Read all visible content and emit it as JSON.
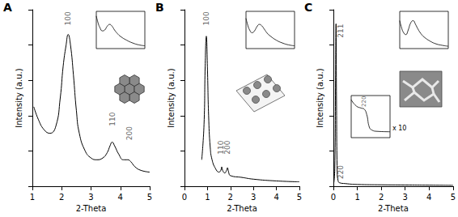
{
  "chart_data": [
    {
      "type": "line",
      "title": "A",
      "xlabel": "2-Theta",
      "ylabel": "Intensity (a.u.)",
      "color": "#000000",
      "x": [
        1.05,
        1.2,
        1.4,
        1.6,
        1.8,
        1.95,
        2.05,
        2.15,
        2.22,
        2.3,
        2.4,
        2.5,
        2.6,
        2.8,
        3.0,
        3.2,
        3.4,
        3.55,
        3.65,
        3.72,
        3.8,
        3.95,
        4.1,
        4.25,
        4.35,
        4.5,
        4.7,
        5.0
      ],
      "values": [
        45,
        38,
        32,
        30,
        34,
        50,
        68,
        80,
        86,
        80,
        63,
        43,
        30,
        20,
        16,
        15,
        16,
        19,
        23,
        25,
        23,
        18,
        15,
        15,
        14,
        11,
        9,
        8
      ],
      "xlim": [
        1,
        5
      ],
      "xticks": [
        1,
        2,
        3,
        4,
        5
      ],
      "ylim": [
        0,
        100
      ],
      "yticks": [
        0,
        20,
        40,
        60,
        80,
        100
      ],
      "tick_labels": "x",
      "annotations": [
        {
          "text": "100",
          "x": 2.22,
          "y": 95
        },
        {
          "text": "110",
          "x": 3.72,
          "y": 38
        },
        {
          "text": "200",
          "x": 4.3,
          "y": 30
        }
      ],
      "insets": [
        {
          "type": "line",
          "color": "#000000",
          "tick_labels": false,
          "xlim": [
            0,
            80
          ],
          "ylim": [
            0,
            80
          ],
          "x": [
            0,
            3,
            6,
            10,
            14,
            18,
            22,
            26,
            30,
            35,
            40,
            50,
            60,
            70,
            80
          ],
          "values": [
            70,
            55,
            45,
            38,
            40,
            48,
            52,
            48,
            40,
            32,
            26,
            18,
            12,
            8,
            6
          ]
        }
      ]
    },
    {
      "type": "line",
      "title": "B",
      "xlabel": "2-Theta",
      "ylabel": "Intensity (a.u.)",
      "color": "#000000",
      "x": [
        0.75,
        0.85,
        0.9,
        0.95,
        1.0,
        1.05,
        1.12,
        1.2,
        1.35,
        1.5,
        1.58,
        1.62,
        1.66,
        1.75,
        1.83,
        1.87,
        1.92,
        2.0,
        2.5,
        3.0,
        4.0,
        5.0
      ],
      "values": [
        15,
        35,
        68,
        85,
        66,
        40,
        22,
        15,
        10,
        8,
        9,
        11,
        9,
        7.5,
        9,
        10.5,
        8,
        6,
        5,
        4,
        3,
        2.5
      ],
      "xlim": [
        0,
        5
      ],
      "xticks": [
        0,
        1,
        2,
        3,
        4,
        5
      ],
      "ylim": [
        0,
        100
      ],
      "yticks": [
        0,
        20,
        40,
        60,
        80,
        100
      ],
      "tick_labels": "x",
      "annotations": [
        {
          "text": "100",
          "x": 0.95,
          "y": 95
        },
        {
          "text": "110",
          "x": 1.6,
          "y": 22
        },
        {
          "text": "200",
          "x": 1.88,
          "y": 22
        }
      ],
      "insets": [
        {
          "type": "line",
          "color": "#000000",
          "tick_labels": false,
          "xlim": [
            0,
            80
          ],
          "ylim": [
            0,
            80
          ],
          "x": [
            0,
            3,
            6,
            10,
            14,
            18,
            22,
            26,
            30,
            35,
            40,
            50,
            60,
            70,
            80
          ],
          "values": [
            65,
            50,
            40,
            34,
            38,
            47,
            52,
            49,
            42,
            33,
            27,
            18,
            12,
            8,
            6
          ]
        }
      ]
    },
    {
      "type": "line",
      "title": "C",
      "xlabel": "2-Theta",
      "ylabel": "Intensity (a.u.)",
      "color": "#000000",
      "x": [
        0.02,
        0.06,
        0.09,
        0.11,
        0.13,
        0.16,
        0.2,
        0.25,
        0.5,
        1.0,
        2.0,
        3.0,
        4.0,
        5.0
      ],
      "values": [
        2,
        10,
        60,
        92,
        50,
        8,
        3,
        2,
        1.5,
        1,
        0.8,
        0.7,
        0.6,
        0.5
      ],
      "xlim": [
        0,
        5
      ],
      "xticks": [
        0,
        1,
        2,
        3,
        4,
        5
      ],
      "ylim": [
        0,
        100
      ],
      "yticks": [
        0,
        20,
        40,
        60,
        80,
        100
      ],
      "tick_labels": "x",
      "annotations": [
        {
          "text": "211",
          "x": 0.3,
          "y": 88
        },
        {
          "text": "220",
          "x": 0.3,
          "y": 8
        }
      ],
      "insets": [
        {
          "type": "line",
          "color": "#000000",
          "tick_labels": false,
          "xlim": [
            0,
            80
          ],
          "ylim": [
            0,
            80
          ],
          "x": [
            0,
            3,
            6,
            10,
            14,
            18,
            22,
            26,
            30,
            35,
            40,
            50,
            60,
            70,
            80
          ],
          "values": [
            60,
            45,
            35,
            30,
            40,
            55,
            60,
            52,
            42,
            32,
            25,
            16,
            10,
            7,
            5
          ]
        },
        {
          "type": "line",
          "color": "#000000",
          "tick_labels": false,
          "xlim": [
            0.15,
            0.3
          ],
          "ylim": [
            0,
            100
          ],
          "x": [
            0.15,
            0.17,
            0.19,
            0.2,
            0.21,
            0.22,
            0.23,
            0.25,
            0.3
          ],
          "values": [
            90,
            75,
            70,
            68,
            55,
            25,
            18,
            15,
            14
          ],
          "annotations": [
            {
              "text": "220",
              "x": 0.2,
              "y": 86
            }
          ],
          "note": "x 10"
        }
      ]
    }
  ]
}
